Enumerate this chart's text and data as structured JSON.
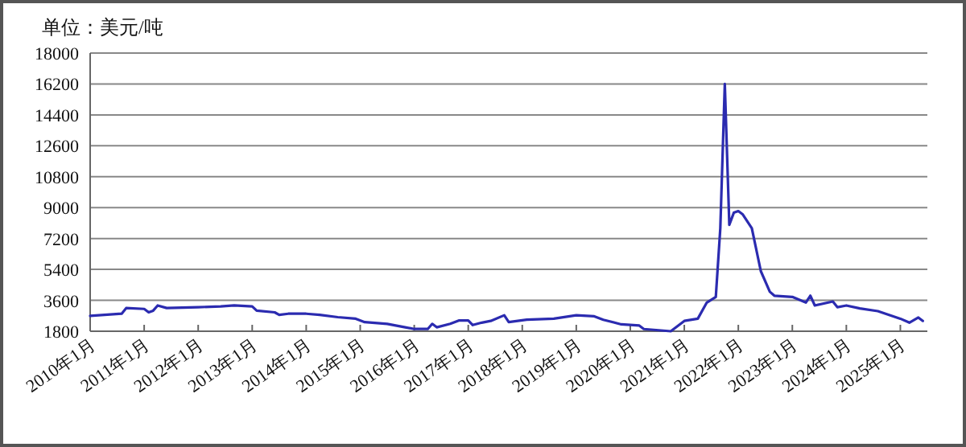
{
  "chart_data": {
    "type": "line",
    "ylabel": "单位：美元/吨",
    "grid": "y",
    "xlim": [
      "2010-01",
      "2025-07"
    ],
    "ylim": [
      1800,
      18000
    ],
    "yticks": [
      1800,
      3600,
      5400,
      7200,
      9000,
      10800,
      12600,
      14400,
      16200,
      18000
    ],
    "xticks": [
      {
        "value": "2010-01",
        "label": "2010年1月"
      },
      {
        "value": "2011-01",
        "label": "2011年1月"
      },
      {
        "value": "2012-01",
        "label": "2012年1月"
      },
      {
        "value": "2013-01",
        "label": "2013年1月"
      },
      {
        "value": "2014-01",
        "label": "2014年1月"
      },
      {
        "value": "2015-01",
        "label": "2015年1月"
      },
      {
        "value": "2016-01",
        "label": "2016年1月"
      },
      {
        "value": "2017-01",
        "label": "2017年1月"
      },
      {
        "value": "2018-01",
        "label": "2018年1月"
      },
      {
        "value": "2019-01",
        "label": "2019年1月"
      },
      {
        "value": "2020-01",
        "label": "2020年1月"
      },
      {
        "value": "2021-01",
        "label": "2021年1月"
      },
      {
        "value": "2022-01",
        "label": "2022年1月"
      },
      {
        "value": "2023-01",
        "label": "2023年1月"
      },
      {
        "value": "2024-01",
        "label": "2024年1月"
      },
      {
        "value": "2025-01",
        "label": "2025年1月"
      }
    ],
    "series": [
      {
        "color": "#2b2bb0",
        "x": [
          "2010-01",
          "2010-08",
          "2010-09",
          "2011-01",
          "2011-02",
          "2011-03",
          "2011-04",
          "2011-06",
          "2012-01",
          "2012-06",
          "2012-09",
          "2013-01",
          "2013-02",
          "2013-06",
          "2013-07",
          "2013-09",
          "2014-01",
          "2014-04",
          "2014-08",
          "2014-12",
          "2015-02",
          "2015-07",
          "2015-11",
          "2016-01",
          "2016-04",
          "2016-05",
          "2016-06",
          "2016-09",
          "2016-11",
          "2017-01",
          "2017-02",
          "2017-04",
          "2017-06",
          "2017-09",
          "2017-10",
          "2018-02",
          "2018-08",
          "2019-01",
          "2019-05",
          "2019-07",
          "2019-11",
          "2020-03",
          "2020-04",
          "2020-10",
          "2021-01",
          "2021-04",
          "2021-06",
          "2021-08",
          "2021-09",
          "2021-10",
          "2021-11",
          "2021-12",
          "2022-01",
          "2022-02",
          "2022-04",
          "2022-06",
          "2022-08",
          "2022-09",
          "2023-01",
          "2023-04",
          "2023-05",
          "2023-06",
          "2023-10",
          "2023-11",
          "2024-01",
          "2024-04",
          "2024-08",
          "2025-01",
          "2025-03",
          "2025-05",
          "2025-06"
        ],
        "values": [
          2700,
          2820,
          3150,
          3100,
          2900,
          3000,
          3300,
          3150,
          3200,
          3250,
          3300,
          3250,
          3000,
          2900,
          2750,
          2820,
          2820,
          2750,
          2620,
          2530,
          2330,
          2230,
          2030,
          1930,
          1930,
          2230,
          2030,
          2230,
          2430,
          2430,
          2160,
          2300,
          2400,
          2730,
          2330,
          2470,
          2530,
          2730,
          2670,
          2470,
          2200,
          2130,
          1930,
          1800,
          2400,
          2530,
          3470,
          3800,
          7800,
          16200,
          8000,
          8700,
          8800,
          8600,
          7800,
          5300,
          4100,
          3870,
          3800,
          3470,
          3870,
          3300,
          3530,
          3200,
          3300,
          3130,
          2970,
          2530,
          2300,
          2600,
          2400
        ]
      }
    ]
  }
}
